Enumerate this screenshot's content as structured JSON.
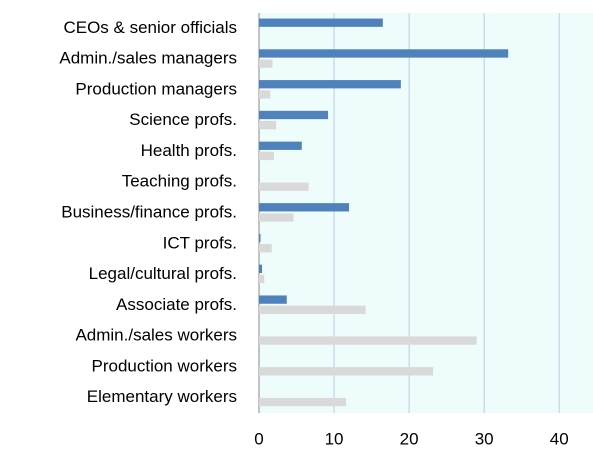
{
  "chart_data": {
    "type": "hbar",
    "categories": [
      "CEOs & senior officials",
      "Admin./sales managers",
      "Production managers",
      "Science profs.",
      "Health profs.",
      "Teaching profs.",
      "Business/finance profs.",
      "ICT profs.",
      "Legal/cultural profs.",
      "Associate profs.",
      "Admin./sales workers",
      "Production workers",
      "Elementary workers"
    ],
    "series": [
      {
        "color": "#4f81bd",
        "values": [
          16.5,
          33.2,
          18.9,
          9.2,
          5.7,
          0,
          12,
          0.2,
          0.4,
          3.7,
          0,
          0,
          0
        ]
      },
      {
        "color": "#d9d9d9",
        "values": [
          0,
          1.8,
          1.5,
          2.3,
          2,
          6.6,
          4.6,
          1.7,
          0.7,
          14.2,
          29,
          23.2,
          11.6
        ]
      }
    ],
    "xlim": [
      0,
      44.5
    ],
    "xticks": [
      0,
      10,
      20,
      30,
      40
    ],
    "grid": true
  }
}
